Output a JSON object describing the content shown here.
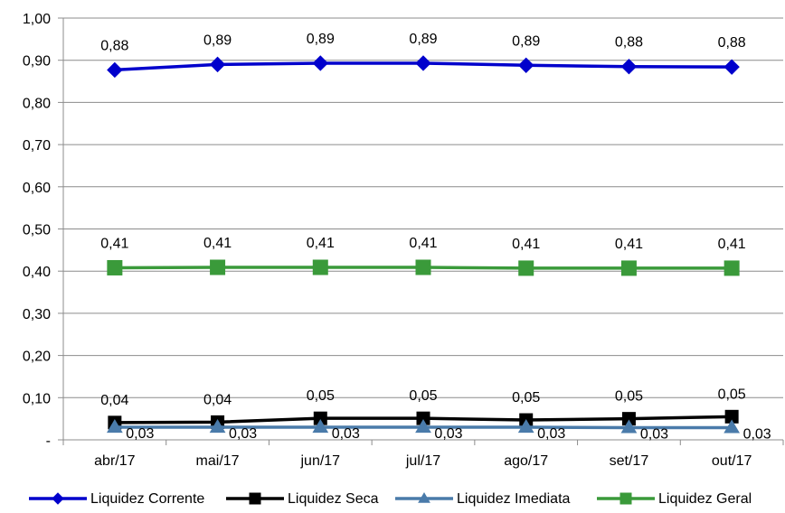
{
  "chart_data": {
    "type": "line",
    "categories": [
      "abr/17",
      "mai/17",
      "jun/17",
      "jul/17",
      "ago/17",
      "set/17",
      "out/17"
    ],
    "ylim": [
      0,
      1.0
    ],
    "yticks": [
      {
        "value": 0.0,
        "label": "-"
      },
      {
        "value": 0.1,
        "label": "0,10"
      },
      {
        "value": 0.2,
        "label": "0,20"
      },
      {
        "value": 0.3,
        "label": "0,30"
      },
      {
        "value": 0.4,
        "label": "0,40"
      },
      {
        "value": 0.5,
        "label": "0,50"
      },
      {
        "value": 0.6,
        "label": "0,60"
      },
      {
        "value": 0.7,
        "label": "0,70"
      },
      {
        "value": 0.8,
        "label": "0,80"
      },
      {
        "value": 0.9,
        "label": "0,90"
      },
      {
        "value": 1.0,
        "label": "1,00"
      }
    ],
    "grid": true,
    "legend_position": "bottom",
    "series": [
      {
        "name": "Liquidez Corrente",
        "color": "#0000CC",
        "marker": "diamond",
        "values": [
          0.877,
          0.89,
          0.893,
          0.893,
          0.888,
          0.885,
          0.884
        ],
        "labels": [
          "0,88",
          "0,89",
          "0,89",
          "0,89",
          "0,89",
          "0,88",
          "0,88"
        ]
      },
      {
        "name": "Liquidez Seca",
        "color": "#000000",
        "marker": "square",
        "values": [
          0.041,
          0.042,
          0.051,
          0.051,
          0.047,
          0.05,
          0.055
        ],
        "labels": [
          "0,04",
          "0,04",
          "0,05",
          "0,05",
          "0,05",
          "0,05",
          "0,05"
        ]
      },
      {
        "name": "Liquidez Imediata",
        "color": "#4A7BAA",
        "marker": "triangle",
        "values": [
          0.03,
          0.03,
          0.03,
          0.03,
          0.03,
          0.029,
          0.029
        ],
        "labels": [
          "0,03",
          "0,03",
          "0,03",
          "0,03",
          "0,03",
          "0,03",
          "0,03"
        ]
      },
      {
        "name": "Liquidez Geral",
        "color": "#3A9A3A",
        "marker": "square",
        "values": [
          0.408,
          0.409,
          0.409,
          0.409,
          0.407,
          0.407,
          0.407
        ],
        "labels": [
          "0,41",
          "0,41",
          "0,41",
          "0,41",
          "0,41",
          "0,41",
          "0,41"
        ]
      }
    ]
  }
}
